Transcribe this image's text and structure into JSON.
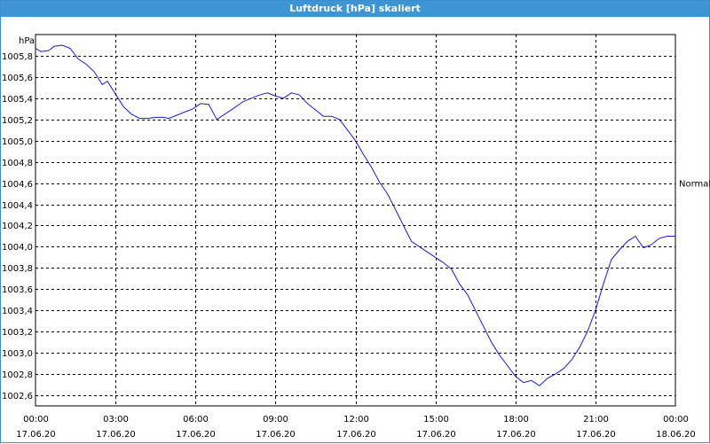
{
  "window": {
    "title": "Luftdruck [hPa] skaliert"
  },
  "colors": {
    "titlebar": "#3d95d4",
    "line": "#1a1adc",
    "grid": "#000000"
  },
  "chart_data": {
    "type": "line",
    "ylabel": "hPa",
    "ylim": [
      1002.5,
      1006.0
    ],
    "yticks": [
      1002.6,
      1002.8,
      1003.0,
      1003.2,
      1003.4,
      1003.6,
      1003.8,
      1004.0,
      1004.2,
      1004.4,
      1004.6,
      1004.8,
      1005.0,
      1005.2,
      1005.4,
      1005.6,
      1005.8
    ],
    "ytick_labels": [
      "1002,6",
      "1002,8",
      "1003,0",
      "1003,2",
      "1003,4",
      "1003,6",
      "1003,8",
      "1004,0",
      "1004,2",
      "1004,4",
      "1004,6",
      "1004,8",
      "1005,0",
      "1005,2",
      "1005,4",
      "1005,6",
      "1005,8"
    ],
    "xlim_hours": [
      0,
      24
    ],
    "xticks_hours": [
      0,
      3,
      6,
      9,
      12,
      15,
      18,
      21,
      24
    ],
    "xtick_times": [
      "00:00",
      "03:00",
      "06:00",
      "09:00",
      "12:00",
      "15:00",
      "18:00",
      "21:00",
      "00:00"
    ],
    "xtick_dates": [
      "17.06.20",
      "17.06.20",
      "17.06.20",
      "17.06.20",
      "17.06.20",
      "17.06.20",
      "17.06.20",
      "17.06.20",
      "18.06.20"
    ],
    "grid": true,
    "reference_label": "Normal",
    "series": [
      {
        "hours": [
          0,
          0.2,
          0.5,
          0.7,
          1.0,
          1.3,
          1.6,
          1.9,
          2.2,
          2.5,
          2.7,
          2.9,
          3.1,
          3.3,
          3.6,
          3.9,
          4.2,
          4.5,
          4.8,
          5.0,
          5.3,
          5.6,
          5.9,
          6.2,
          6.5,
          6.8,
          7.1,
          7.4,
          7.8,
          8.1,
          8.4,
          8.7,
          9.0,
          9.3,
          9.6,
          9.9,
          10.2,
          10.5,
          10.8,
          11.1,
          11.4,
          11.7,
          12.0,
          12.3,
          12.6,
          12.9,
          13.2,
          13.5,
          13.8,
          14.1,
          14.4,
          14.7,
          15.0,
          15.3,
          15.6,
          15.9,
          16.2,
          16.5,
          16.8,
          17.1,
          17.4,
          17.7,
          18.0,
          18.3,
          18.6,
          18.9,
          19.2,
          19.5,
          19.8,
          20.1,
          20.4,
          20.7,
          21.0,
          21.3,
          21.6,
          21.9,
          22.2,
          22.5,
          22.8,
          23.1,
          23.4,
          23.7,
          24.0
        ],
        "values": [
          1005.87,
          1005.84,
          1005.85,
          1005.89,
          1005.9,
          1005.87,
          1005.77,
          1005.72,
          1005.65,
          1005.53,
          1005.56,
          1005.48,
          1005.4,
          1005.32,
          1005.25,
          1005.21,
          1005.21,
          1005.22,
          1005.22,
          1005.21,
          1005.24,
          1005.27,
          1005.3,
          1005.35,
          1005.34,
          1005.2,
          1005.25,
          1005.3,
          1005.37,
          1005.4,
          1005.43,
          1005.45,
          1005.42,
          1005.4,
          1005.45,
          1005.43,
          1005.35,
          1005.29,
          1005.23,
          1005.23,
          1005.2,
          1005.1,
          1005.0,
          1004.87,
          1004.75,
          1004.61,
          1004.5,
          1004.35,
          1004.2,
          1004.05,
          1004.0,
          1003.95,
          1003.9,
          1003.85,
          1003.79,
          1003.65,
          1003.55,
          1003.4,
          1003.25,
          1003.1,
          1002.98,
          1002.88,
          1002.78,
          1002.72,
          1002.74,
          1002.69,
          1002.76,
          1002.8,
          1002.85,
          1002.93,
          1003.05,
          1003.2,
          1003.4,
          1003.65,
          1003.88,
          1003.97,
          1004.05,
          1004.1,
          1003.99,
          1004.02,
          1004.08,
          1004.1,
          1004.1
        ]
      }
    ]
  }
}
